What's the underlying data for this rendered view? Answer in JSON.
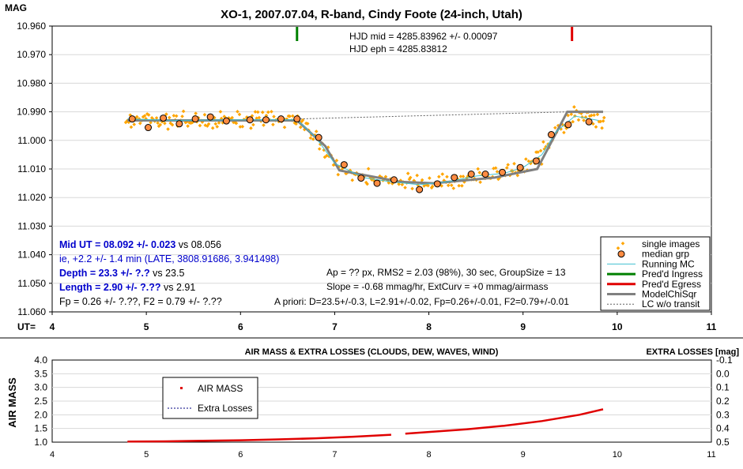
{
  "chart_data": [
    {
      "type": "scatter",
      "title": "XO-1, 2007.07.04, R-band, Cindy Foote (24-inch, Utah)",
      "ylabel": "MAG",
      "xlabel": "UT=",
      "xlim": [
        4,
        11
      ],
      "ylim": [
        10.96,
        11.06
      ],
      "y_inverted": true,
      "x_ticks": [
        "4",
        "5",
        "6",
        "7",
        "8",
        "9",
        "10",
        "11"
      ],
      "y_ticks": [
        "10.960",
        "10.970",
        "10.980",
        "10.990",
        "11.000",
        "11.010",
        "11.020",
        "11.030",
        "11.040",
        "11.050",
        "11.060"
      ],
      "legend_position": "bottom-right",
      "legend": [
        "single images",
        "median grp",
        "Running MC",
        "Pred'd Ingress",
        "Pred'd Egress",
        "ModelChiSqr",
        "LC w/o transit"
      ],
      "colors": {
        "single": "#ffa500",
        "median": "#ff8c42",
        "running": "#40c0d0",
        "ingress": "#008000",
        "egress": "#e00000",
        "model": "#808080",
        "wo_transit": "#606060",
        "blue_text": "#0000cc"
      },
      "predicted_ingress": 6.6,
      "predicted_egress": 9.52,
      "median_group": [
        {
          "x": 4.85,
          "y": 10.9925
        },
        {
          "x": 5.02,
          "y": 10.9955
        },
        {
          "x": 5.18,
          "y": 10.9922
        },
        {
          "x": 5.35,
          "y": 10.9942
        },
        {
          "x": 5.52,
          "y": 10.9925
        },
        {
          "x": 5.68,
          "y": 10.9918
        },
        {
          "x": 5.85,
          "y": 10.9932
        },
        {
          "x": 6.1,
          "y": 10.9928
        },
        {
          "x": 6.27,
          "y": 10.9928
        },
        {
          "x": 6.43,
          "y": 10.9925
        },
        {
          "x": 6.6,
          "y": 10.9925
        },
        {
          "x": 6.83,
          "y": 10.999
        },
        {
          "x": 7.1,
          "y": 11.0085
        },
        {
          "x": 7.28,
          "y": 11.0132
        },
        {
          "x": 7.45,
          "y": 11.015
        },
        {
          "x": 7.63,
          "y": 11.0138
        },
        {
          "x": 7.9,
          "y": 11.0172
        },
        {
          "x": 8.09,
          "y": 11.0152
        },
        {
          "x": 8.27,
          "y": 11.013
        },
        {
          "x": 8.45,
          "y": 11.0118
        },
        {
          "x": 8.6,
          "y": 11.0118
        },
        {
          "x": 8.78,
          "y": 11.0112
        },
        {
          "x": 8.97,
          "y": 11.0095
        },
        {
          "x": 9.14,
          "y": 11.0072
        },
        {
          "x": 9.3,
          "y": 10.998
        },
        {
          "x": 9.48,
          "y": 10.9945
        },
        {
          "x": 9.7,
          "y": 10.9935
        }
      ],
      "model": {
        "x": [
          4.8,
          6.6,
          6.9,
          7.05,
          7.7,
          8.05,
          8.7,
          9.15,
          9.47,
          9.85
        ],
        "y": [
          10.993,
          10.993,
          11.002,
          11.0105,
          11.0145,
          11.015,
          11.013,
          11.01,
          10.99,
          10.99
        ]
      },
      "running_mc": {
        "x": [
          4.8,
          5.3,
          6.0,
          6.6,
          6.8,
          7.0,
          7.3,
          7.6,
          7.9,
          8.2,
          8.5,
          8.8,
          9.0,
          9.2,
          9.35,
          9.55,
          9.8
        ],
        "y": [
          10.9925,
          10.993,
          10.9928,
          10.9928,
          10.999,
          11.008,
          11.013,
          11.0145,
          11.0155,
          11.0145,
          11.0125,
          11.0115,
          11.0095,
          11.005,
          10.997,
          10.9915,
          10.993
        ]
      },
      "wo_transit": {
        "x": [
          6.6,
          9.5
        ],
        "y": [
          10.9925,
          10.99
        ]
      },
      "annotations": {
        "hjd_mid": "HJD mid = 4285.83962 +/- 0.00097",
        "hjd_eph": "HJD eph = 4285.83812",
        "mid_ut_a": "Mid UT = 08.092 +/- 0.023",
        "mid_ut_b": " vs 08.056",
        "ie": "ie, +2.2 +/- 1.4 min (LATE, 3808.91686, 3.941498)",
        "depth_a": "Depth = 23.3 +/- ?.?",
        "depth_b": " vs 23.5",
        "length_a": "Length = 2.90 +/- ?.??",
        "length_b": " vs 2.91",
        "fp": "Fp = 0.26 +/- ?.??, F2 = 0.79 +/- ?.??",
        "ap": "Ap = ?? px, RMS2 = 2.03 (98%), 30 sec, GroupSize = 13",
        "slope": "Slope = -0.68 mmag/hr, ExtCurv = +0 mmag/airmass",
        "apriori": "A priori:  D=23.5+/-0.3, L=2.91+/-0.02, Fp=0.26+/-0.01, F2=0.79+/-0.01"
      }
    },
    {
      "type": "line",
      "title": "AIR MASS & EXTRA LOSSES (CLOUDS, DEW, WAVES, WIND)",
      "ylabel": "AIR MASS",
      "y2label": "EXTRA LOSSES [mag]",
      "xlim": [
        4,
        11
      ],
      "ylim": [
        1.0,
        4.0
      ],
      "y2lim": [
        0.5,
        -0.1
      ],
      "x_ticks": [
        "4",
        "5",
        "6",
        "7",
        "8",
        "9",
        "10",
        "11"
      ],
      "y_ticks": [
        "4.0",
        "3.5",
        "3.0",
        "2.5",
        "2.0",
        "1.5",
        "1.0"
      ],
      "y2_ticks": [
        "-0.1",
        "0.0",
        "0.1",
        "0.2",
        "0.3",
        "0.4",
        "0.5"
      ],
      "legend": [
        "AIR MASS",
        "Extra Losses"
      ],
      "series": [
        {
          "name": "AIR MASS",
          "color": "#e00000",
          "x": [
            4.8,
            5.2,
            5.6,
            6.0,
            6.4,
            6.8,
            7.2,
            7.6,
            7.75,
            8.0,
            8.4,
            8.8,
            9.2,
            9.6,
            9.85
          ],
          "y": [
            1.02,
            1.03,
            1.05,
            1.07,
            1.1,
            1.14,
            1.2,
            1.27,
            1.31,
            1.37,
            1.47,
            1.6,
            1.77,
            2.0,
            2.2
          ]
        }
      ]
    }
  ]
}
